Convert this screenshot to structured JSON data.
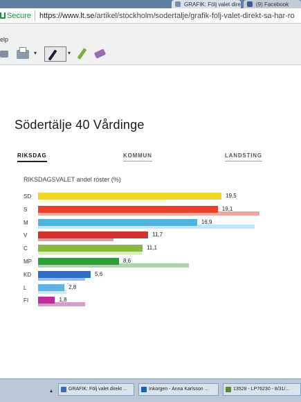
{
  "browser": {
    "tabs": [
      {
        "label": "GRAFIK: Följ valet direkt"
      },
      {
        "label": "(9) Facebook"
      }
    ],
    "secure_label": "Secure",
    "url_domain": "https://www.lt.se",
    "url_path": "/artikel/stockholm/sodertalje/grafik-folj-valet-direkt-sa-har-ro"
  },
  "menu": {
    "help": "elp"
  },
  "toolbar": {
    "items": [
      "print-icon",
      "printer-icon",
      "pen-icon",
      "highlighter-icon",
      "eraser-icon"
    ]
  },
  "page": {
    "title": "Södertälje 40 Vårdinge",
    "tabs": [
      {
        "label": "RIKSDAG",
        "active": true
      },
      {
        "label": "KOMMUN",
        "active": false
      },
      {
        "label": "LANDSTING",
        "active": false
      }
    ]
  },
  "chart_data": {
    "type": "bar",
    "orientation": "horizontal",
    "title": "RIKSDAGSVALET andel röster (%)",
    "categories": [
      "SD",
      "S",
      "M",
      "V",
      "C",
      "MP",
      "KD",
      "L",
      "FI"
    ],
    "series": [
      {
        "values": [
          19.5,
          19.1,
          16.9,
          11.7,
          11.1,
          8.6,
          5.6,
          2.8,
          1.8
        ],
        "value_labels": [
          "19,5",
          "19,1",
          "16,9",
          "11,7",
          "11,1",
          "8,6",
          "5,6",
          "2,8",
          "1,8"
        ]
      },
      {
        "values": [
          13.5,
          23.5,
          23.0,
          8.0,
          11.0,
          16.0,
          5.0,
          3.0,
          5.0
        ]
      }
    ],
    "colors": [
      "#f0d522",
      "#e8402c",
      "#4fb4e0",
      "#d4312e",
      "#8ab83f",
      "#2f9e3a",
      "#2e6fcc",
      "#5cb3e4",
      "#c02d9e"
    ],
    "xlim": [
      0,
      25
    ]
  },
  "taskbar": {
    "tasks": [
      {
        "label": "GRAFIK: Följ valet direkt ..."
      },
      {
        "label": "Inkorgen - Anna Karlsson ..."
      },
      {
        "label": "13528 - LP76230 - 8/31/..."
      }
    ]
  }
}
